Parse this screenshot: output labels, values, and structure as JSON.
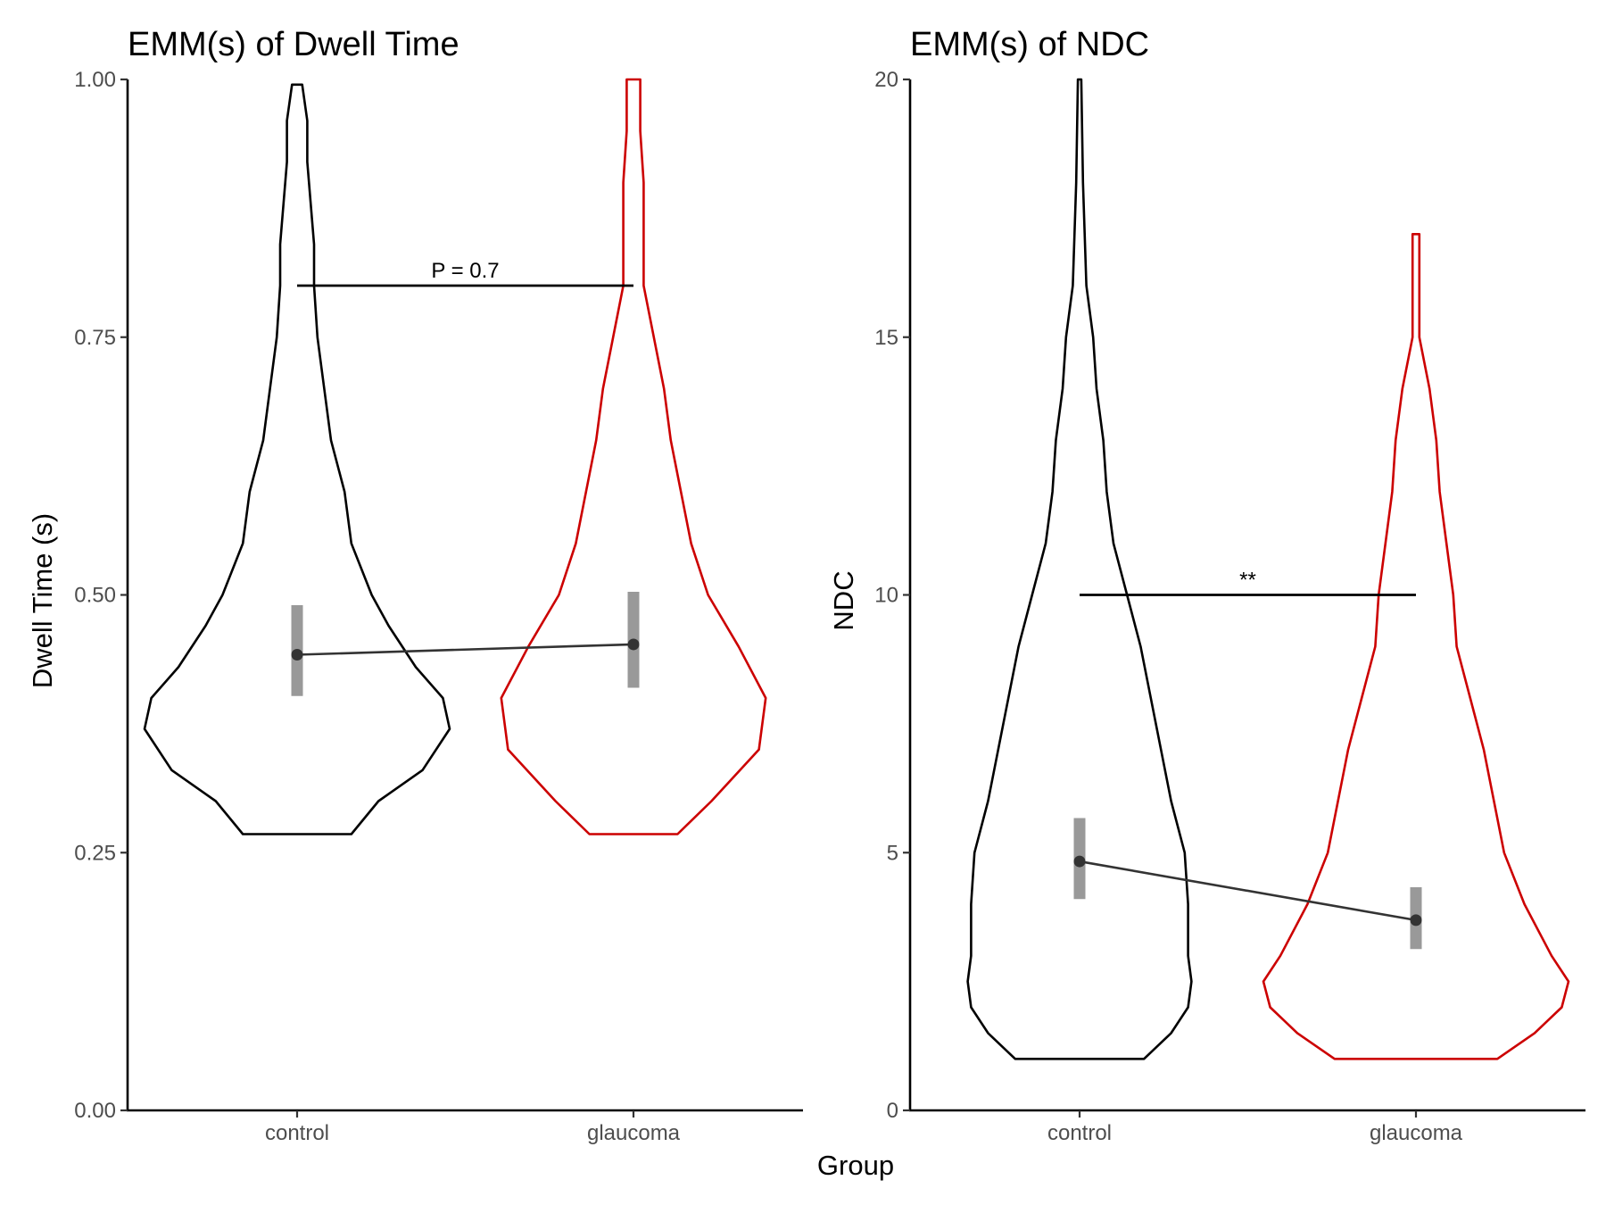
{
  "shared": {
    "xlabel": "Group",
    "colors": {
      "control": "#000000",
      "glaucoma": "#cc0000",
      "ci_bar": "#999999",
      "emm_line": "#333333"
    }
  },
  "chart_data": [
    {
      "type": "violin",
      "title": "EMM(s) of Dwell Time",
      "ylabel": "Dwell Time (s)",
      "xlabel": "Group",
      "categories": [
        "control",
        "glaucoma"
      ],
      "ylim": [
        0,
        1
      ],
      "yticks": [
        0,
        0.25,
        0.5,
        0.75,
        1
      ],
      "ytick_labels": [
        "0.00",
        "0.25",
        "0.50",
        "0.75",
        "1.00"
      ],
      "grid": false,
      "violins": [
        {
          "group": "control",
          "color": "#000000",
          "density": [
            [
              0.268,
              0.16
            ],
            [
              0.3,
              0.24
            ],
            [
              0.33,
              0.37
            ],
            [
              0.37,
              0.45
            ],
            [
              0.4,
              0.43
            ],
            [
              0.43,
              0.35
            ],
            [
              0.47,
              0.27
            ],
            [
              0.5,
              0.22
            ],
            [
              0.55,
              0.16
            ],
            [
              0.6,
              0.14
            ],
            [
              0.65,
              0.1
            ],
            [
              0.7,
              0.08
            ],
            [
              0.75,
              0.06
            ],
            [
              0.8,
              0.05
            ],
            [
              0.84,
              0.05
            ],
            [
              0.88,
              0.04
            ],
            [
              0.92,
              0.03
            ],
            [
              0.96,
              0.03
            ],
            [
              0.995,
              0.015
            ]
          ]
        },
        {
          "group": "glaucoma",
          "color": "#cc0000",
          "density": [
            [
              0.268,
              0.13
            ],
            [
              0.3,
              0.23
            ],
            [
              0.35,
              0.37
            ],
            [
              0.4,
              0.39
            ],
            [
              0.45,
              0.31
            ],
            [
              0.5,
              0.22
            ],
            [
              0.55,
              0.17
            ],
            [
              0.6,
              0.14
            ],
            [
              0.65,
              0.11
            ],
            [
              0.7,
              0.09
            ],
            [
              0.75,
              0.06
            ],
            [
              0.8,
              0.03
            ],
            [
              0.85,
              0.03
            ],
            [
              0.9,
              0.03
            ],
            [
              0.95,
              0.02
            ],
            [
              1.0,
              0.02
            ]
          ]
        }
      ],
      "emm": [
        {
          "group": "control",
          "mean": 0.442,
          "lower": 0.402,
          "upper": 0.49
        },
        {
          "group": "glaucoma",
          "mean": 0.452,
          "lower": 0.41,
          "upper": 0.503
        }
      ],
      "comparison": {
        "from": "control",
        "to": "glaucoma",
        "y": 0.8,
        "label": "P = 0.7"
      }
    },
    {
      "type": "violin",
      "title": "EMM(s) of NDC",
      "ylabel": "NDC",
      "xlabel": "Group",
      "categories": [
        "control",
        "glaucoma"
      ],
      "ylim": [
        0,
        20
      ],
      "yticks": [
        0,
        5,
        10,
        15,
        20
      ],
      "ytick_labels": [
        "0",
        "5",
        "10",
        "15",
        "20"
      ],
      "grid": false,
      "violins": [
        {
          "group": "control",
          "color": "#000000",
          "density": [
            [
              1.0,
              0.19
            ],
            [
              1.5,
              0.27
            ],
            [
              2.0,
              0.32
            ],
            [
              2.5,
              0.33
            ],
            [
              3.0,
              0.32
            ],
            [
              4.0,
              0.32
            ],
            [
              5.0,
              0.31
            ],
            [
              6.0,
              0.27
            ],
            [
              7.0,
              0.24
            ],
            [
              8.0,
              0.21
            ],
            [
              9.0,
              0.18
            ],
            [
              10.0,
              0.14
            ],
            [
              11.0,
              0.1
            ],
            [
              12.0,
              0.08
            ],
            [
              13.0,
              0.07
            ],
            [
              14.0,
              0.05
            ],
            [
              15.0,
              0.04
            ],
            [
              16.0,
              0.02
            ],
            [
              18.0,
              0.01
            ],
            [
              20.0,
              0.005
            ]
          ]
        },
        {
          "group": "glaucoma",
          "color": "#cc0000",
          "density": [
            [
              1.0,
              0.24
            ],
            [
              1.5,
              0.35
            ],
            [
              2.0,
              0.43
            ],
            [
              2.5,
              0.45
            ],
            [
              3.0,
              0.4
            ],
            [
              4.0,
              0.32
            ],
            [
              5.0,
              0.26
            ],
            [
              6.0,
              0.23
            ],
            [
              7.0,
              0.2
            ],
            [
              8.0,
              0.16
            ],
            [
              9.0,
              0.12
            ],
            [
              10.0,
              0.11
            ],
            [
              11.0,
              0.09
            ],
            [
              12.0,
              0.07
            ],
            [
              13.0,
              0.06
            ],
            [
              14.0,
              0.04
            ],
            [
              15.0,
              0.01
            ],
            [
              16.0,
              0.01
            ],
            [
              17.0,
              0.01
            ]
          ]
        }
      ],
      "emm": [
        {
          "group": "control",
          "mean": 4.83,
          "lower": 4.1,
          "upper": 5.67
        },
        {
          "group": "glaucoma",
          "mean": 3.69,
          "lower": 3.13,
          "upper": 4.33
        }
      ],
      "comparison": {
        "from": "control",
        "to": "glaucoma",
        "y": 10.0,
        "label": "**"
      }
    }
  ]
}
